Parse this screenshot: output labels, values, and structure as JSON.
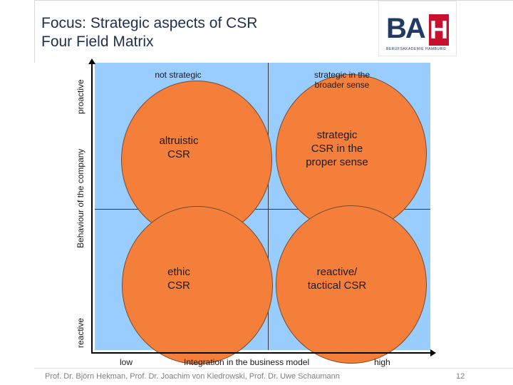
{
  "header": {
    "title": "Focus: Strategic aspects of CSR",
    "subtitle": "Four Field Matrix"
  },
  "logo": {
    "letters_ba": "BA",
    "letter_h": "H",
    "tagline": "BERUFSAKADEMIE HAMBURG",
    "brand_color": "#223a66",
    "accent_color": "#c8102e"
  },
  "matrix": {
    "background_color": "#99ccff",
    "circle_color": "#f47f3a",
    "column_headers": [
      "not strategic",
      "strategic in the\nbroader sense"
    ],
    "quadrants": [
      "altruistic\nCSR",
      "strategic\nCSR in the\nproper sense",
      "ethic\nCSR",
      "reactive/\ntactical CSR"
    ]
  },
  "axes": {
    "y_top": "proactive",
    "y_label": "Behaviour of the company",
    "y_bottom": "reactive",
    "x_low": "low",
    "x_label": "Integration in the business model",
    "x_high": "high"
  },
  "footer": {
    "authors": "Prof. Dr. Björn Hekman, Prof. Dr. Joachim von Kiedrowski, Prof. Dr. Uwe Schaumann",
    "page_number": "12"
  }
}
